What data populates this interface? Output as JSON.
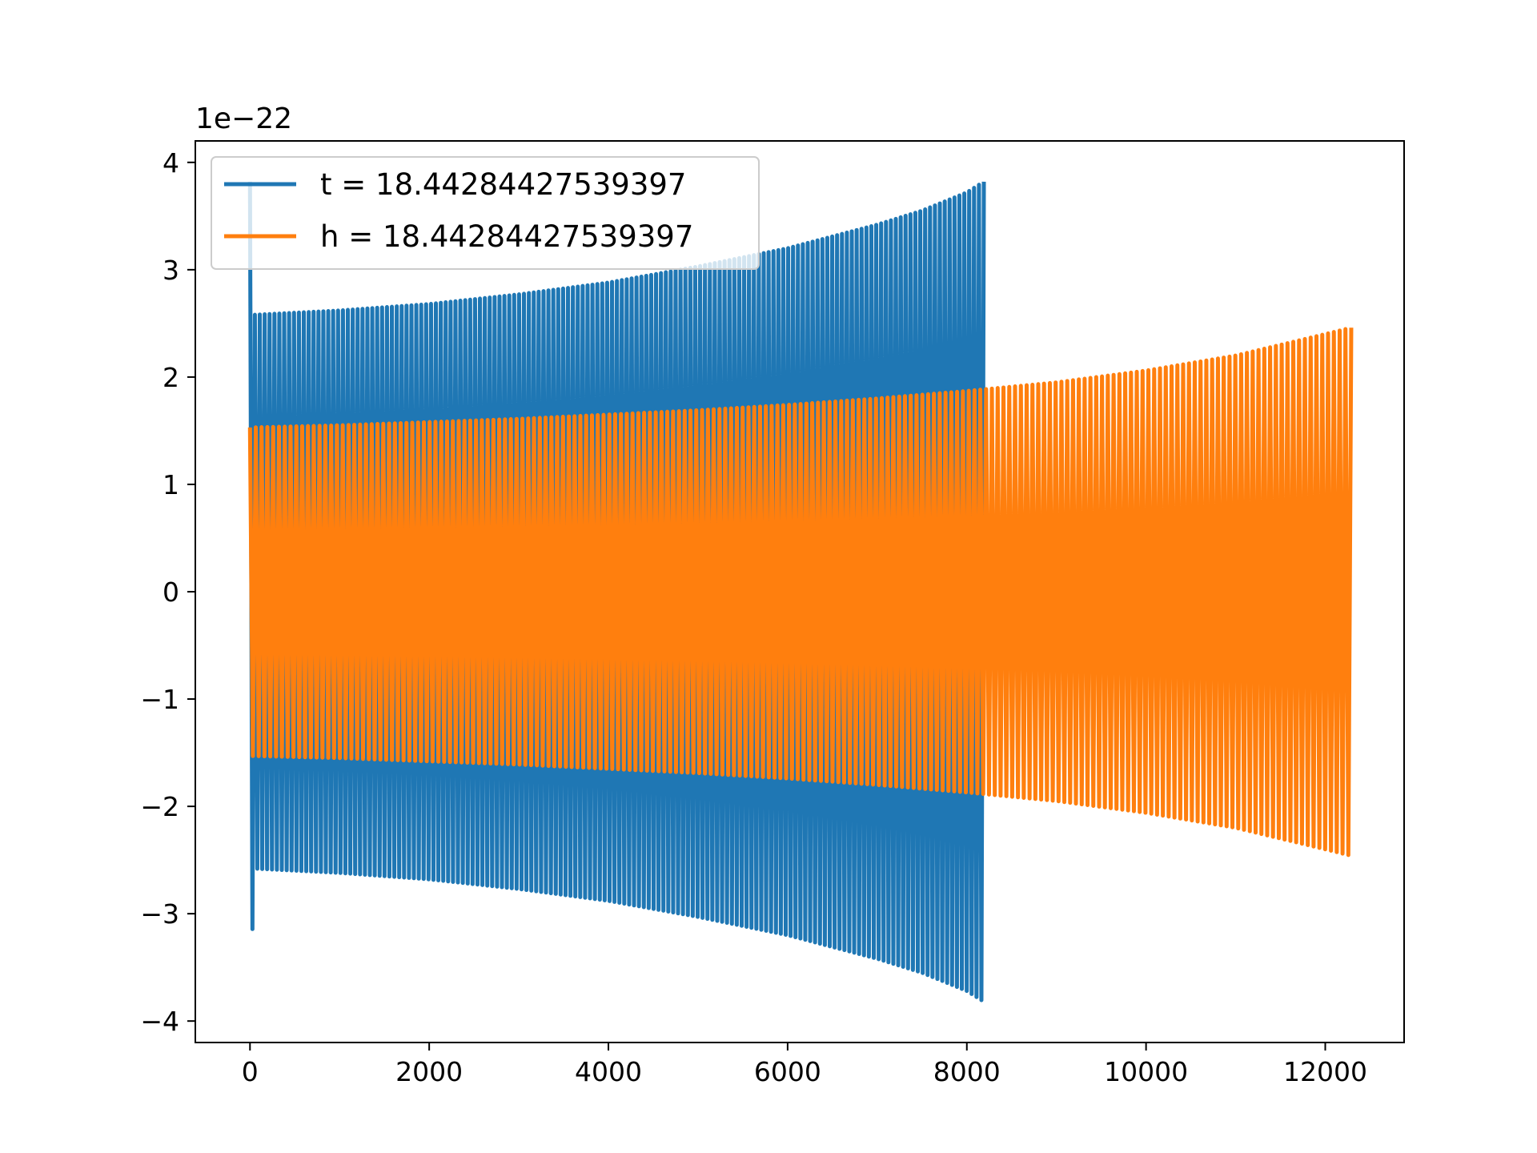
{
  "chart_data": {
    "type": "line",
    "title": "",
    "xlabel": "",
    "ylabel": "",
    "xlim": [
      -610,
      12880
    ],
    "ylim": [
      -4.2,
      4.2
    ],
    "y_offset_label": "1e−22",
    "xticks": [
      0,
      2000,
      4000,
      6000,
      8000,
      10000,
      12000
    ],
    "xtick_labels": [
      "0",
      "2000",
      "4000",
      "6000",
      "8000",
      "10000",
      "12000"
    ],
    "yticks": [
      -4,
      -3,
      -2,
      -1,
      0,
      1,
      2,
      3,
      4
    ],
    "ytick_labels": [
      "−4",
      "−3",
      "−2",
      "−1",
      "0",
      "1",
      "2",
      "3",
      "4"
    ],
    "grid": false,
    "legend_position": "top-left",
    "series": [
      {
        "name": "t = 18.44284427539397",
        "color": "#1f77b4",
        "x_start": 0,
        "x_end": 8190,
        "envelope_x": [
          0,
          50,
          1000,
          2000,
          3000,
          4000,
          5000,
          6000,
          7000,
          7500,
          8000,
          8190
        ],
        "envelope_amplitude": [
          3.82,
          2.58,
          2.62,
          2.68,
          2.77,
          2.88,
          3.03,
          3.2,
          3.42,
          3.55,
          3.72,
          3.82
        ],
        "cycles": 150
      },
      {
        "name": "h = 18.44284427539397",
        "color": "#ff7f0e",
        "x_start": 0,
        "x_end": 12290,
        "envelope_x": [
          0,
          1000,
          2000,
          3000,
          4000,
          5000,
          6000,
          7000,
          8000,
          9000,
          10000,
          11000,
          12000,
          12290
        ],
        "envelope_amplitude": [
          1.53,
          1.55,
          1.58,
          1.61,
          1.65,
          1.69,
          1.74,
          1.8,
          1.87,
          1.95,
          2.06,
          2.2,
          2.4,
          2.46
        ],
        "cycles": 190
      }
    ]
  }
}
